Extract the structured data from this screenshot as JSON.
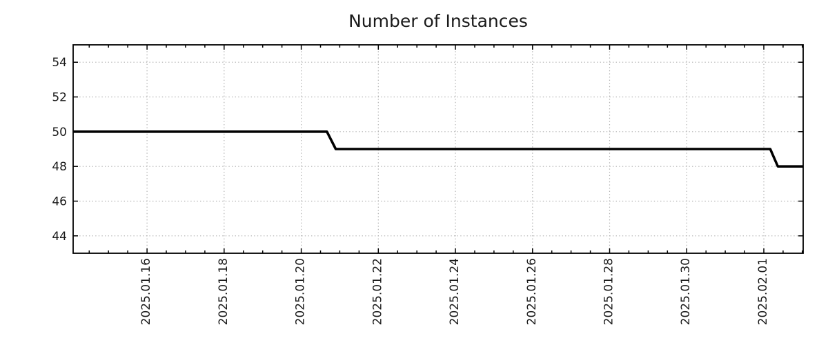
{
  "chart_data": {
    "type": "line",
    "style": "step-line",
    "title": "Number of Instances",
    "xlabel": "",
    "ylabel": "",
    "grid": {
      "show": true,
      "style": "dotted",
      "color": "#b0b0b0"
    },
    "legend": {
      "show": false
    },
    "colors": {
      "line": "#000000",
      "axis": "#000000",
      "text": "#1a1a1a",
      "background": "#ffffff"
    },
    "y_axis": {
      "min": 43,
      "max": 55,
      "major_ticks": [
        44,
        46,
        48,
        50,
        52,
        54
      ],
      "tick_labels": [
        "44",
        "46",
        "48",
        "50",
        "52",
        "54"
      ]
    },
    "x_axis": {
      "type": "datetime",
      "range_start": "2025-01-14T02:00:00",
      "range_end": "2025-02-02T00:30:00",
      "major_ticks": [
        {
          "date": "2025-01-16T00:00:00",
          "label": "2025.01.16"
        },
        {
          "date": "2025-01-18T00:00:00",
          "label": "2025.01.18"
        },
        {
          "date": "2025-01-20T00:00:00",
          "label": "2025.01.20"
        },
        {
          "date": "2025-01-22T00:00:00",
          "label": "2025.01.22"
        },
        {
          "date": "2025-01-24T00:00:00",
          "label": "2025.01.24"
        },
        {
          "date": "2025-01-26T00:00:00",
          "label": "2025.01.26"
        },
        {
          "date": "2025-01-28T00:00:00",
          "label": "2025.01.28"
        },
        {
          "date": "2025-01-30T00:00:00",
          "label": "2025.01.30"
        },
        {
          "date": "2025-02-01T00:00:00",
          "label": "2025.02.01"
        }
      ],
      "minor_tick_hours": 12,
      "label_rotation_deg": 90
    },
    "series": [
      {
        "name": "Number of Instances",
        "color": "#000000",
        "line_width": 3.6,
        "points": [
          {
            "x": "2025-01-14T02:00:00",
            "y": 50
          },
          {
            "x": "2025-01-20T16:00:00",
            "y": 50
          },
          {
            "x": "2025-01-20T21:30:00",
            "y": 49
          },
          {
            "x": "2025-02-01T04:00:00",
            "y": 49
          },
          {
            "x": "2025-02-01T08:45:00",
            "y": 48
          },
          {
            "x": "2025-02-02T00:30:00",
            "y": 48
          }
        ]
      }
    ]
  }
}
